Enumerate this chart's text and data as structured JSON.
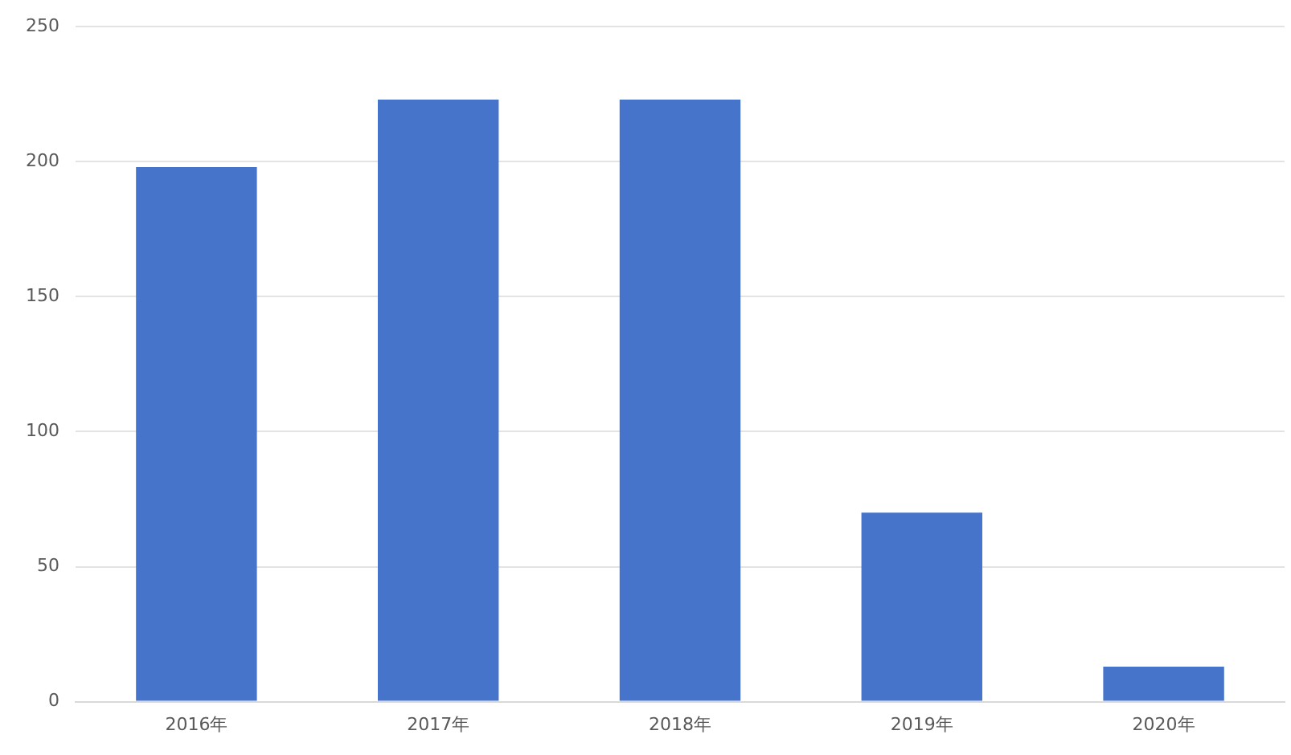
{
  "chart_data": {
    "type": "bar",
    "categories": [
      "2016年",
      "2017年",
      "2018年",
      "2019年",
      "2020年"
    ],
    "values": [
      198,
      223,
      223,
      70,
      13
    ],
    "color": "#4674cb",
    "ylim": [
      0,
      250
    ],
    "yticks": [
      0,
      50,
      100,
      150,
      200,
      250
    ],
    "grid": "y",
    "legend": false
  }
}
